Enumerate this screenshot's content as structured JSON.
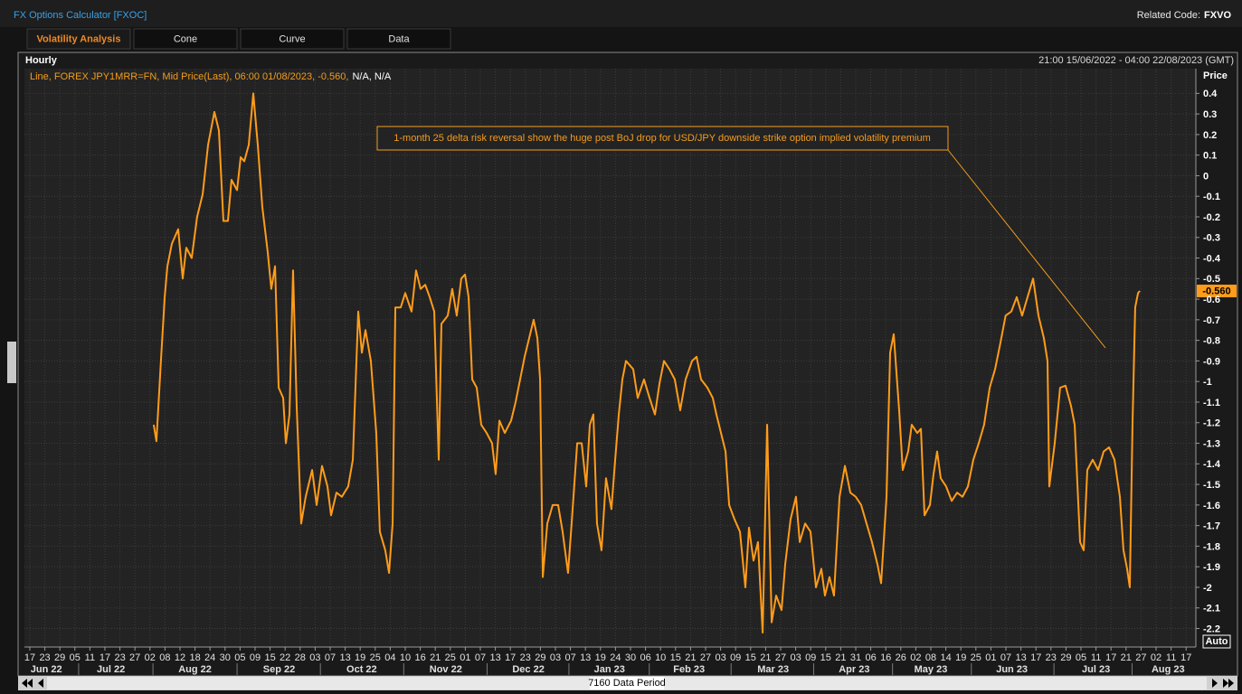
{
  "header": {
    "title": "FX Options Calculator [FXOC]",
    "related_label": "Related Code:",
    "related_code": "FXVO"
  },
  "tabs": [
    "Volatility Analysis",
    "Cone",
    "Curve",
    "Data"
  ],
  "chart_data": {
    "type": "line",
    "interval": "Hourly",
    "range": "21:00 15/06/2022 - 04:00 22/08/2023 (GMT)",
    "legend": {
      "main": "Line, FOREX JPY1MRR=FN, Mid Price(Last), 06:00 01/08/2023, -0.560,",
      "tail": "N/A, N/A"
    },
    "y_label": "Price",
    "annotation": "1-month 25 delta risk reversal show the huge post BoJ drop for USD/JPY downside strike option implied volatility premium",
    "color": "#ff9c1a",
    "grid": true,
    "last_value": {
      "value": -0.56,
      "label": "-0.560"
    },
    "xlim": [
      -0.36,
      77.65
    ],
    "ylim": [
      -2.29,
      0.52
    ],
    "yticks": [
      0.4,
      0.3,
      0.2,
      0.1,
      0,
      -0.1,
      -0.2,
      -0.3,
      -0.4,
      -0.5,
      -0.6,
      -0.7,
      -0.8,
      -0.9,
      -1,
      -1.1,
      -1.2,
      -1.3,
      -1.4,
      -1.5,
      -1.6,
      -1.7,
      -1.8,
      -1.9,
      -2,
      -2.1,
      -2.2
    ],
    "xticks": [
      {
        "value": 0,
        "label": "17"
      },
      {
        "value": 1,
        "label": "23"
      },
      {
        "value": 2,
        "label": "29"
      },
      {
        "value": 3,
        "label": "05"
      },
      {
        "value": 4,
        "label": "11"
      },
      {
        "value": 5,
        "label": "17"
      },
      {
        "value": 6,
        "label": "23"
      },
      {
        "value": 7,
        "label": "27"
      },
      {
        "value": 8,
        "label": "02"
      },
      {
        "value": 9,
        "label": "08"
      },
      {
        "value": 10,
        "label": "12"
      },
      {
        "value": 11,
        "label": "18"
      },
      {
        "value": 12,
        "label": "24"
      },
      {
        "value": 13,
        "label": "30"
      },
      {
        "value": 14,
        "label": "05"
      },
      {
        "value": 15,
        "label": "09"
      },
      {
        "value": 16,
        "label": "15"
      },
      {
        "value": 17,
        "label": "22"
      },
      {
        "value": 18,
        "label": "28"
      },
      {
        "value": 19,
        "label": "03"
      },
      {
        "value": 20,
        "label": "07"
      },
      {
        "value": 21,
        "label": "13"
      },
      {
        "value": 22,
        "label": "19"
      },
      {
        "value": 23,
        "label": "25"
      },
      {
        "value": 24,
        "label": "04"
      },
      {
        "value": 25,
        "label": "10"
      },
      {
        "value": 26,
        "label": "16"
      },
      {
        "value": 27,
        "label": "21"
      },
      {
        "value": 28,
        "label": "25"
      },
      {
        "value": 29,
        "label": "01"
      },
      {
        "value": 30,
        "label": "07"
      },
      {
        "value": 31,
        "label": "13"
      },
      {
        "value": 32,
        "label": "17"
      },
      {
        "value": 33,
        "label": "23"
      },
      {
        "value": 34,
        "label": "29"
      },
      {
        "value": 35,
        "label": "03"
      },
      {
        "value": 36,
        "label": "07"
      },
      {
        "value": 37,
        "label": "13"
      },
      {
        "value": 38,
        "label": "19"
      },
      {
        "value": 39,
        "label": "24"
      },
      {
        "value": 40,
        "label": "30"
      },
      {
        "value": 41,
        "label": "06"
      },
      {
        "value": 42,
        "label": "10"
      },
      {
        "value": 43,
        "label": "15"
      },
      {
        "value": 44,
        "label": "21"
      },
      {
        "value": 45,
        "label": "27"
      },
      {
        "value": 46,
        "label": "03"
      },
      {
        "value": 47,
        "label": "09"
      },
      {
        "value": 48,
        "label": "15"
      },
      {
        "value": 49,
        "label": "21"
      },
      {
        "value": 50,
        "label": "27"
      },
      {
        "value": 51,
        "label": "03"
      },
      {
        "value": 52,
        "label": "09"
      },
      {
        "value": 53,
        "label": "15"
      },
      {
        "value": 54,
        "label": "21"
      },
      {
        "value": 55,
        "label": "31"
      },
      {
        "value": 56,
        "label": "06"
      },
      {
        "value": 57,
        "label": "16"
      },
      {
        "value": 58,
        "label": "26"
      },
      {
        "value": 59,
        "label": "02"
      },
      {
        "value": 60,
        "label": "08"
      },
      {
        "value": 61,
        "label": "14"
      },
      {
        "value": 62,
        "label": "19"
      },
      {
        "value": 63,
        "label": "25"
      },
      {
        "value": 64,
        "label": "01"
      },
      {
        "value": 65,
        "label": "07"
      },
      {
        "value": 66,
        "label": "13"
      },
      {
        "value": 67,
        "label": "17"
      },
      {
        "value": 68,
        "label": "23"
      },
      {
        "value": 69,
        "label": "29"
      },
      {
        "value": 70,
        "label": "05"
      },
      {
        "value": 71,
        "label": "11"
      },
      {
        "value": 72,
        "label": "17"
      },
      {
        "value": 73,
        "label": "21"
      },
      {
        "value": 74,
        "label": "27"
      },
      {
        "value": 75,
        "label": "02"
      },
      {
        "value": 76,
        "label": "11"
      },
      {
        "value": 77,
        "label": "17"
      }
    ],
    "months": [
      {
        "value": 1.1,
        "label": "Jun 22"
      },
      {
        "value": 5.4,
        "label": "Jul 22"
      },
      {
        "value": 11.0,
        "label": "Aug 22"
      },
      {
        "value": 16.6,
        "label": "Sep 22"
      },
      {
        "value": 22.1,
        "label": "Oct 22"
      },
      {
        "value": 27.7,
        "label": "Nov 22"
      },
      {
        "value": 33.2,
        "label": "Dec 22"
      },
      {
        "value": 38.6,
        "label": "Jan 23"
      },
      {
        "value": 43.9,
        "label": "Feb 23"
      },
      {
        "value": 49.5,
        "label": "Mar 23"
      },
      {
        "value": 54.9,
        "label": "Apr 23"
      },
      {
        "value": 60.0,
        "label": "May 23"
      },
      {
        "value": 65.4,
        "label": "Jun 23"
      },
      {
        "value": 71.0,
        "label": "Jul 23"
      },
      {
        "value": 75.8,
        "label": "Aug 23"
      }
    ],
    "x": [
      8.25,
      8.43,
      8.73,
      8.98,
      9.16,
      9.46,
      9.88,
      10.18,
      10.42,
      10.78,
      11.14,
      11.51,
      11.87,
      12.29,
      12.59,
      12.89,
      13.19,
      13.43,
      13.8,
      14.04,
      14.28,
      14.58,
      14.88,
      15.18,
      15.48,
      15.84,
      16.08,
      16.33,
      16.57,
      16.87,
      17.05,
      17.29,
      17.53,
      17.77,
      18.07,
      18.37,
      18.8,
      19.1,
      19.46,
      19.82,
      20.06,
      20.42,
      20.78,
      21.2,
      21.51,
      21.87,
      22.11,
      22.35,
      22.71,
      23.07,
      23.31,
      23.67,
      23.92,
      24.16,
      24.34,
      24.7,
      25.0,
      25.42,
      25.72,
      26.02,
      26.33,
      26.63,
      26.93,
      27.23,
      27.41,
      27.83,
      28.13,
      28.43,
      28.73,
      28.98,
      29.22,
      29.46,
      29.76,
      30.06,
      30.42,
      30.78,
      31.02,
      31.27,
      31.63,
      32.05,
      32.35,
      32.65,
      32.95,
      33.25,
      33.55,
      33.8,
      33.98,
      34.16,
      34.46,
      34.82,
      35.18,
      35.48,
      35.84,
      36.08,
      36.45,
      36.75,
      37.05,
      37.29,
      37.53,
      37.77,
      38.07,
      38.37,
      38.73,
      38.98,
      39.22,
      39.46,
      39.7,
      40.18,
      40.48,
      40.9,
      41.27,
      41.63,
      41.93,
      42.23,
      42.59,
      42.95,
      43.31,
      43.67,
      44.1,
      44.4,
      44.7,
      45.12,
      45.48,
      45.72,
      45.96,
      46.33,
      46.57,
      46.93,
      47.29,
      47.65,
      47.89,
      48.19,
      48.49,
      48.8,
      49.1,
      49.4,
      49.7,
      50.06,
      50.3,
      50.66,
      51.02,
      51.27,
      51.63,
      51.99,
      52.35,
      52.71,
      52.95,
      53.25,
      53.55,
      53.92,
      54.28,
      54.64,
      55.0,
      55.36,
      55.72,
      56.08,
      56.45,
      56.69,
      57.05,
      57.29,
      57.53,
      57.89,
      58.13,
      58.49,
      58.73,
      59.1,
      59.34,
      59.58,
      59.94,
      60.18,
      60.42,
      60.66,
      61.02,
      61.39,
      61.75,
      62.11,
      62.47,
      62.83,
      63.19,
      63.55,
      63.92,
      64.28,
      64.64,
      64.98,
      65.36,
      65.72,
      66.08,
      66.44,
      66.81,
      67.17,
      67.53,
      67.77,
      67.89,
      68.25,
      68.61,
      68.97,
      69.34,
      69.58,
      69.94,
      70.18,
      70.42,
      70.78,
      71.14,
      71.51,
      71.87,
      72.23,
      72.59,
      72.83,
      73.07,
      73.25,
      73.43,
      73.61,
      73.8,
      73.92
    ],
    "values": [
      -1.21,
      -1.29,
      -0.9,
      -0.59,
      -0.44,
      -0.33,
      -0.26,
      -0.5,
      -0.35,
      -0.4,
      -0.2,
      -0.09,
      0.15,
      0.31,
      0.22,
      -0.22,
      -0.22,
      -0.02,
      -0.07,
      0.09,
      0.07,
      0.15,
      0.4,
      0.15,
      -0.15,
      -0.37,
      -0.55,
      -0.44,
      -1.03,
      -1.08,
      -1.3,
      -1.16,
      -0.46,
      -1.12,
      -1.69,
      -1.56,
      -1.43,
      -1.6,
      -1.41,
      -1.51,
      -1.65,
      -1.54,
      -1.56,
      -1.51,
      -1.38,
      -0.66,
      -0.86,
      -0.75,
      -0.9,
      -1.25,
      -1.73,
      -1.82,
      -1.93,
      -1.69,
      -0.64,
      -0.64,
      -0.57,
      -0.66,
      -0.46,
      -0.55,
      -0.53,
      -0.59,
      -0.66,
      -1.38,
      -0.72,
      -0.68,
      -0.55,
      -0.68,
      -0.5,
      -0.48,
      -0.59,
      -0.99,
      -1.03,
      -1.21,
      -1.25,
      -1.3,
      -1.45,
      -1.19,
      -1.25,
      -1.19,
      -1.1,
      -0.99,
      -0.88,
      -0.79,
      -0.7,
      -0.79,
      -0.99,
      -1.95,
      -1.69,
      -1.6,
      -1.6,
      -1.73,
      -1.93,
      -1.69,
      -1.3,
      -1.3,
      -1.51,
      -1.21,
      -1.16,
      -1.69,
      -1.82,
      -1.47,
      -1.62,
      -1.38,
      -1.16,
      -0.99,
      -0.9,
      -0.94,
      -1.08,
      -0.99,
      -1.08,
      -1.16,
      -1.01,
      -0.9,
      -0.94,
      -0.99,
      -1.14,
      -0.99,
      -0.9,
      -0.88,
      -0.99,
      -1.03,
      -1.08,
      -1.16,
      -1.23,
      -1.34,
      -1.6,
      -1.67,
      -1.73,
      -2.0,
      -1.71,
      -1.87,
      -1.78,
      -2.22,
      -1.21,
      -2.17,
      -2.04,
      -2.11,
      -1.89,
      -1.67,
      -1.56,
      -1.78,
      -1.69,
      -1.73,
      -2.0,
      -1.91,
      -2.04,
      -1.95,
      -2.04,
      -1.56,
      -1.41,
      -1.54,
      -1.56,
      -1.6,
      -1.69,
      -1.78,
      -1.89,
      -1.98,
      -1.56,
      -0.86,
      -0.77,
      -1.14,
      -1.43,
      -1.34,
      -1.21,
      -1.25,
      -1.23,
      -1.65,
      -1.6,
      -1.45,
      -1.34,
      -1.47,
      -1.51,
      -1.58,
      -1.54,
      -1.56,
      -1.51,
      -1.38,
      -1.3,
      -1.21,
      -1.03,
      -0.94,
      -0.81,
      -0.68,
      -0.66,
      -0.59,
      -0.68,
      -0.59,
      -0.5,
      -0.68,
      -0.79,
      -0.9,
      -1.51,
      -1.3,
      -1.03,
      -1.02,
      -1.12,
      -1.21,
      -1.78,
      -1.82,
      -1.43,
      -1.38,
      -1.43,
      -1.34,
      -1.32,
      -1.38,
      -1.56,
      -1.82,
      -1.91,
      -2.0,
      -1.21,
      -0.64,
      -0.57,
      -0.56
    ]
  },
  "footer": {
    "period": "7160 Data Period",
    "auto": "Auto"
  }
}
